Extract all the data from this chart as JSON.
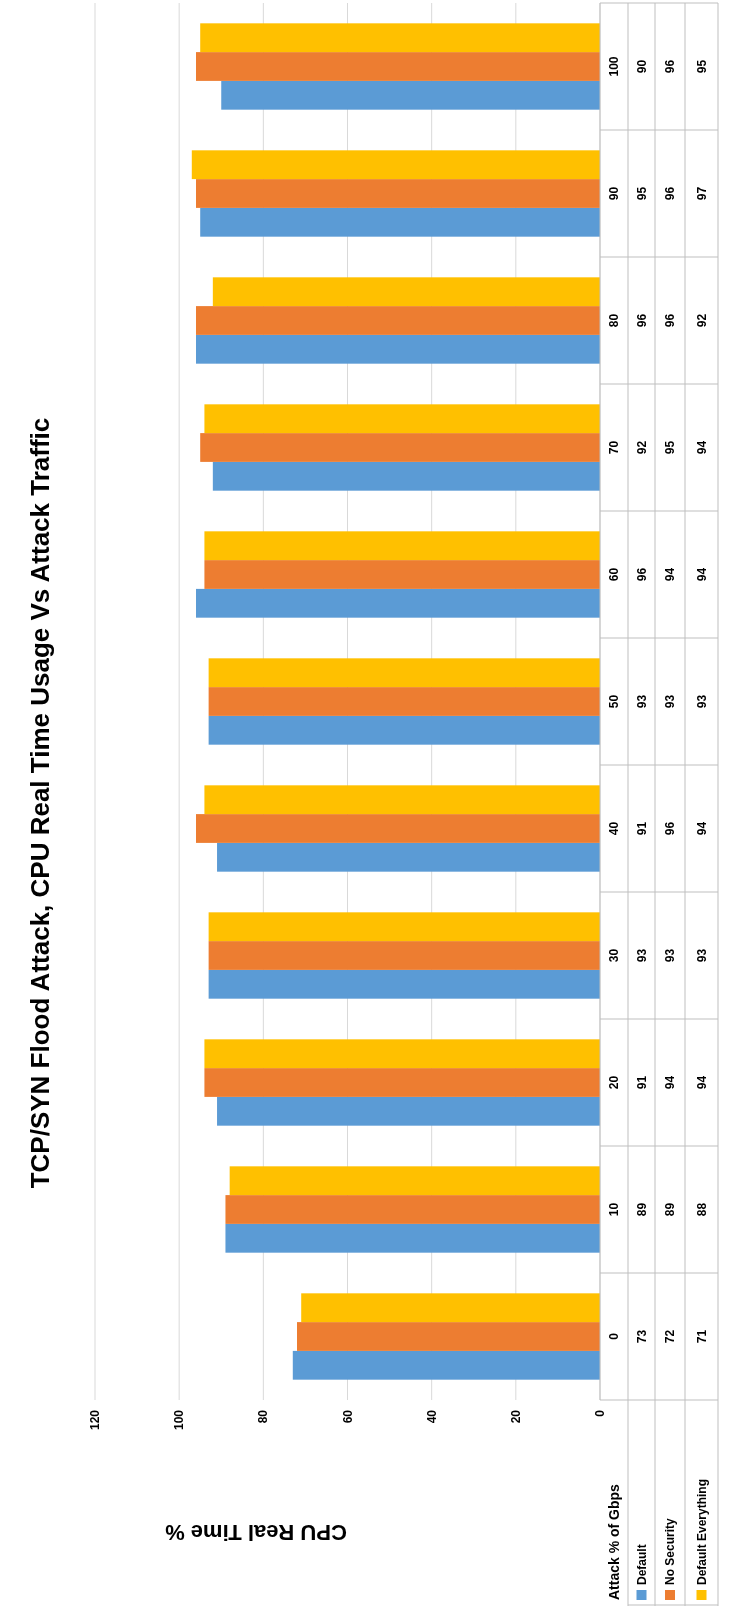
{
  "chart_data": {
    "type": "bar",
    "orientation": "horizontal",
    "title": "TCP/SYN Flood Attack, CPU Real Time Usage Vs Attack Traffic",
    "xlabel": "CPU Real Time %",
    "ylabel": "Attack % of Gbps",
    "categories": [
      "100",
      "90",
      "80",
      "70",
      "60",
      "50",
      "40",
      "30",
      "20",
      "10",
      "0"
    ],
    "series": [
      {
        "name": "Default",
        "color": "#5b9bd5",
        "values": [
          90,
          95,
          96,
          92,
          96,
          93,
          91,
          93,
          91,
          89,
          73
        ]
      },
      {
        "name": "No Security",
        "color": "#ed7d31",
        "values": [
          96,
          96,
          96,
          95,
          94,
          93,
          96,
          93,
          94,
          89,
          72
        ]
      },
      {
        "name": "Default Everything",
        "color": "#ffc000",
        "values": [
          95,
          97,
          92,
          94,
          94,
          93,
          94,
          93,
          94,
          88,
          71
        ]
      }
    ],
    "xlim": [
      120,
      0
    ],
    "xticks": [
      120,
      100,
      80,
      60,
      40,
      20,
      0
    ],
    "grid": "x",
    "legend": "bottom",
    "data_labels": true
  }
}
